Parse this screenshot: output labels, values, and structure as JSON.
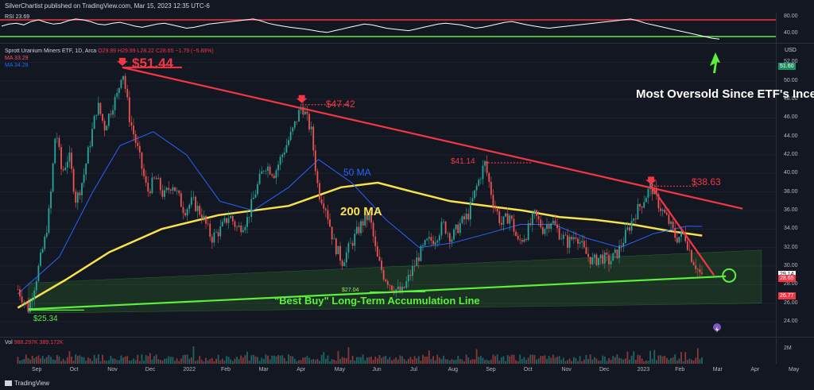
{
  "header": {
    "publisher": "SilverChartist published on TradingView.com, Mar 15, 2023 12:35 UTC-6"
  },
  "rsi": {
    "label": "RSI",
    "value": "23.69",
    "levels": [
      "80.00",
      "40.00"
    ],
    "upper": 70,
    "lower": 30,
    "values": [
      55,
      60,
      62,
      58,
      66,
      70,
      64,
      60,
      62,
      68,
      72,
      70,
      66,
      60,
      58,
      62,
      64,
      60,
      55,
      52,
      56,
      60,
      62,
      58,
      54,
      50,
      52,
      56,
      60,
      62,
      64,
      66,
      68,
      70,
      72,
      68,
      62,
      58,
      55,
      52,
      50,
      48,
      45,
      42,
      40,
      44,
      48,
      52,
      56,
      60,
      58,
      54,
      50,
      48,
      46,
      44,
      48,
      52,
      56,
      60,
      62,
      60,
      58,
      54,
      50,
      52,
      56,
      60,
      64,
      66,
      62,
      58,
      55,
      52,
      50,
      52,
      54,
      56,
      58,
      60,
      62,
      64,
      66,
      68,
      70,
      72,
      68,
      62,
      58,
      54,
      50,
      46,
      42,
      38,
      34,
      30,
      26,
      23.69
    ],
    "colors": {
      "line": "#ffffff",
      "upper": "#f23645",
      "lower": "#5bf03c"
    }
  },
  "legend": {
    "title": "Sprott Uranium Miners ETF, 1D, Arca",
    "ohlc": "O29.99 H29.99 L28.22 C28.65 −1.79 (−5.88%)",
    "ma1": "MA  33.29",
    "ma2": "MA  34.28"
  },
  "price_axis": {
    "currency": "USD",
    "ticks": [
      "52.00",
      "50.00",
      "48.00",
      "46.00",
      "44.00",
      "42.00",
      "40.00",
      "38.00",
      "36.00",
      "34.00",
      "32.00",
      "30.00",
      "28.00",
      "26.00",
      "24.00"
    ],
    "tags": [
      {
        "label": "51.60",
        "color": "#1e8f5e"
      },
      {
        "label": "29.14",
        "color": "#ffffff",
        "text": "#131722"
      },
      {
        "label": "28.65",
        "color": "#f23645"
      },
      {
        "label": "26.77",
        "color": "#f23645"
      }
    ]
  },
  "volume": {
    "label": "Vol",
    "value1": "988.297K",
    "value2": "389.172K",
    "axis_tick": "2M"
  },
  "time_axis": {
    "months": [
      "Sep",
      "Oct",
      "Nov",
      "Dec",
      "2022",
      "Feb",
      "Mar",
      "Apr",
      "May",
      "Jun",
      "Jul",
      "Aug",
      "Sep",
      "Oct",
      "Nov",
      "Dec",
      "2023",
      "Feb",
      "Mar",
      "Apr",
      "May"
    ]
  },
  "annotations": {
    "oversold": "Most Oversold Since ETF's Inception",
    "high_5144": "$51.44",
    "high_4742": "$47.42",
    "high_4114": "$41.14",
    "high_3863": "$38.63",
    "ma50": "50 MA",
    "ma200": "200 MA",
    "low_2704": "$27.04",
    "low_2534": "$25.34",
    "best_buy": "\"Best Buy\" Long-Term Accumulation Line"
  },
  "footer": {
    "brand": "TradingView"
  },
  "chart_data": {
    "type": "line",
    "title": "Sprott Uranium Miners ETF, 1D, Arca",
    "ylabel": "USD",
    "ylim": [
      23,
      53
    ],
    "x_labels": [
      "Sep",
      "Oct",
      "Nov",
      "Dec",
      "2022",
      "Feb",
      "Mar",
      "Apr",
      "May",
      "Jun",
      "Jul",
      "Aug",
      "Sep",
      "Oct",
      "Nov",
      "Dec",
      "2023",
      "Feb",
      "Mar",
      "Apr",
      "May"
    ],
    "price_path": [
      [
        "2021-08-16",
        27.5
      ],
      [
        "2021-08-25",
        25.34
      ],
      [
        "2021-09-01",
        29.0
      ],
      [
        "2021-09-08",
        33.0
      ],
      [
        "2021-09-12",
        36.5
      ],
      [
        "2021-09-17",
        45.0
      ],
      [
        "2021-09-22",
        40.0
      ],
      [
        "2021-09-28",
        42.0
      ],
      [
        "2021-10-04",
        37.0
      ],
      [
        "2021-10-10",
        39.5
      ],
      [
        "2021-10-16",
        43.5
      ],
      [
        "2021-10-22",
        47.5
      ],
      [
        "2021-10-28",
        45.0
      ],
      [
        "2021-11-04",
        47.5
      ],
      [
        "2021-11-08",
        48.5
      ],
      [
        "2021-11-12",
        51.44
      ],
      [
        "2021-11-18",
        46.0
      ],
      [
        "2021-11-25",
        42.5
      ],
      [
        "2021-12-03",
        38.0
      ],
      [
        "2021-12-10",
        39.5
      ],
      [
        "2021-12-17",
        37.5
      ],
      [
        "2021-12-24",
        39.0
      ],
      [
        "2022-01-03",
        36.0
      ],
      [
        "2022-01-10",
        37.0
      ],
      [
        "2022-01-18",
        35.5
      ],
      [
        "2022-01-26",
        33.0
      ],
      [
        "2022-02-03",
        34.0
      ],
      [
        "2022-02-10",
        35.5
      ],
      [
        "2022-02-17",
        34.0
      ],
      [
        "2022-02-25",
        35.0
      ],
      [
        "2022-03-04",
        38.0
      ],
      [
        "2022-03-12",
        41.0
      ],
      [
        "2022-03-20",
        40.0
      ],
      [
        "2022-03-28",
        42.5
      ],
      [
        "2022-04-04",
        44.5
      ],
      [
        "2022-04-12",
        47.42
      ],
      [
        "2022-04-20",
        44.5
      ],
      [
        "2022-04-26",
        38.0
      ],
      [
        "2022-05-02",
        36.5
      ],
      [
        "2022-05-09",
        32.5
      ],
      [
        "2022-05-16",
        30.5
      ],
      [
        "2022-05-24",
        32.5
      ],
      [
        "2022-06-01",
        34.5
      ],
      [
        "2022-06-08",
        35.5
      ],
      [
        "2022-06-14",
        31.0
      ],
      [
        "2022-06-20",
        29.0
      ],
      [
        "2022-06-27",
        27.8
      ],
      [
        "2022-07-05",
        27.04
      ],
      [
        "2022-07-12",
        29.0
      ],
      [
        "2022-07-19",
        31.0
      ],
      [
        "2022-07-26",
        32.5
      ],
      [
        "2022-08-02",
        33.0
      ],
      [
        "2022-08-09",
        34.5
      ],
      [
        "2022-08-16",
        33.0
      ],
      [
        "2022-08-23",
        34.5
      ],
      [
        "2022-08-30",
        35.5
      ],
      [
        "2022-09-06",
        38.5
      ],
      [
        "2022-09-13",
        41.14
      ],
      [
        "2022-09-20",
        37.0
      ],
      [
        "2022-09-27",
        34.5
      ],
      [
        "2022-10-04",
        35.5
      ],
      [
        "2022-10-11",
        32.5
      ],
      [
        "2022-10-18",
        33.5
      ],
      [
        "2022-10-25",
        35.5
      ],
      [
        "2022-11-01",
        34.0
      ],
      [
        "2022-11-08",
        35.0
      ],
      [
        "2022-11-15",
        33.5
      ],
      [
        "2022-11-22",
        32.5
      ],
      [
        "2022-11-29",
        33.5
      ],
      [
        "2022-12-06",
        31.5
      ],
      [
        "2022-12-13",
        30.5
      ],
      [
        "2022-12-20",
        31.0
      ],
      [
        "2022-12-27",
        30.5
      ],
      [
        "2023-01-03",
        31.5
      ],
      [
        "2023-01-10",
        33.5
      ],
      [
        "2023-01-17",
        35.5
      ],
      [
        "2023-01-24",
        37.0
      ],
      [
        "2023-01-31",
        38.63
      ],
      [
        "2023-02-07",
        36.5
      ],
      [
        "2023-02-14",
        35.0
      ],
      [
        "2023-02-21",
        33.0
      ],
      [
        "2023-02-28",
        33.5
      ],
      [
        "2023-03-06",
        31.0
      ],
      [
        "2023-03-10",
        30.0
      ],
      [
        "2023-03-15",
        28.65
      ]
    ],
    "series": [
      {
        "name": "50 MA",
        "color": "#2962ff",
        "points": [
          [
            "2021-08-16",
            27.0
          ],
          [
            "2021-09-20",
            31.0
          ],
          [
            "2021-10-18",
            38.0
          ],
          [
            "2021-11-10",
            43.0
          ],
          [
            "2021-12-08",
            44.5
          ],
          [
            "2022-01-05",
            42.0
          ],
          [
            "2022-02-02",
            37.0
          ],
          [
            "2022-03-02",
            36.0
          ],
          [
            "2022-04-01",
            38.5
          ],
          [
            "2022-04-26",
            41.5
          ],
          [
            "2022-05-24",
            39.0
          ],
          [
            "2022-06-22",
            35.0
          ],
          [
            "2022-07-20",
            32.0
          ],
          [
            "2022-08-17",
            32.5
          ],
          [
            "2022-09-15",
            33.5
          ],
          [
            "2022-10-13",
            34.5
          ],
          [
            "2022-11-10",
            34.5
          ],
          [
            "2022-12-08",
            33.0
          ],
          [
            "2023-01-05",
            32.0
          ],
          [
            "2023-02-02",
            33.5
          ],
          [
            "2023-03-02",
            34.3
          ],
          [
            "2023-03-15",
            34.28
          ]
        ]
      },
      {
        "name": "200 MA",
        "color": "#f7e24b",
        "points": [
          [
            "2021-08-16",
            25.5
          ],
          [
            "2021-09-25",
            28.5
          ],
          [
            "2021-11-01",
            31.5
          ],
          [
            "2021-12-15",
            34.0
          ],
          [
            "2022-02-01",
            35.5
          ],
          [
            "2022-04-01",
            36.5
          ],
          [
            "2022-05-15",
            38.5
          ],
          [
            "2022-06-15",
            39.0
          ],
          [
            "2022-07-15",
            38.0
          ],
          [
            "2022-08-15",
            37.0
          ],
          [
            "2022-09-15",
            36.5
          ],
          [
            "2022-10-15",
            36.0
          ],
          [
            "2022-11-15",
            35.3
          ],
          [
            "2022-12-15",
            35.0
          ],
          [
            "2023-01-15",
            34.5
          ],
          [
            "2023-02-15",
            33.8
          ],
          [
            "2023-03-15",
            33.29
          ]
        ]
      }
    ],
    "trendlines": [
      {
        "name": "resistance",
        "color": "#f23645",
        "from": [
          "2021-11-12",
          51.44
        ],
        "to": [
          "2023-04-18",
          36.2
        ]
      },
      {
        "name": "accumulation",
        "color": "#5bf03c",
        "from": [
          "2021-08-25",
          25.34
        ],
        "to": [
          "2023-04-04",
          28.9
        ]
      },
      {
        "name": "breakdown",
        "color": "#f23645",
        "from": [
          "2023-01-31",
          38.63
        ],
        "to": [
          "2023-03-25",
          29.0
        ]
      }
    ],
    "marked_levels": [
      {
        "label": "$51.44",
        "date": "2021-11-12",
        "value": 51.44
      },
      {
        "label": "$47.42",
        "date": "2022-04-12",
        "value": 47.42
      },
      {
        "label": "$41.14",
        "date": "2022-09-13",
        "value": 41.14
      },
      {
        "label": "$38.63",
        "date": "2023-01-31",
        "value": 38.63
      },
      {
        "label": "$27.04",
        "date": "2022-07-05",
        "value": 27.04
      },
      {
        "label": "$25.34",
        "date": "2021-08-25",
        "value": 25.34
      }
    ],
    "grid": true,
    "legend_position": "top-left"
  }
}
